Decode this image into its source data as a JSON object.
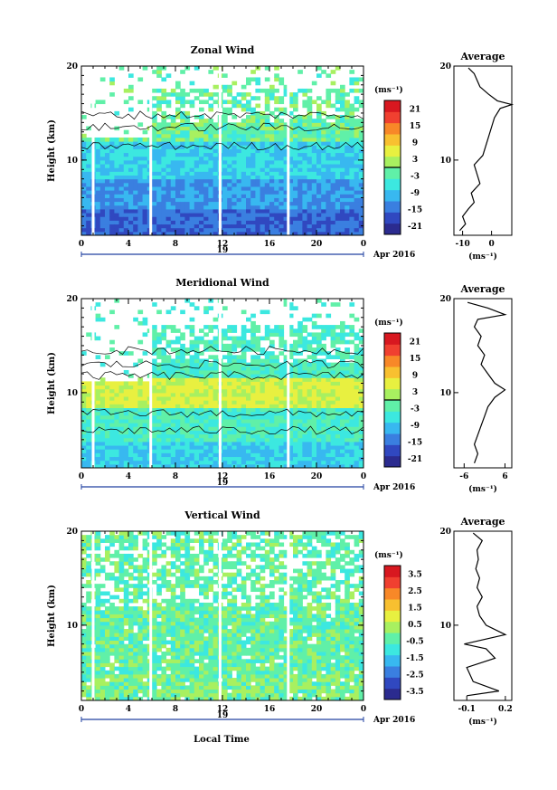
{
  "figure": {
    "xlabel": "Local Time",
    "date_label": "Apr 2016",
    "day_label": "19"
  },
  "chart_data": [
    {
      "id": "zonal",
      "type": "heatmap",
      "title": "Zonal Wind",
      "ylabel": "Height (km)",
      "xlim": [
        0,
        24
      ],
      "ylim": [
        2,
        20
      ],
      "xticks": [
        "0",
        "4",
        "8",
        "12",
        "16",
        "20",
        "0"
      ],
      "yticks": [
        "10",
        "20"
      ],
      "colorbar": {
        "unit_label": "(ms⁻¹)",
        "ticks": [
          "21",
          "15",
          "9",
          "3",
          "-3",
          "-9",
          "-15",
          "-21"
        ],
        "range": [
          -24,
          24
        ],
        "contour_level": 0
      },
      "profile": {
        "title": "Average",
        "xlabel": "(ms⁻¹)",
        "xticks": [
          "-10",
          "0"
        ],
        "xlim": [
          -13,
          7
        ],
        "ylim": [
          2,
          20
        ],
        "yticks": [
          "10",
          "20"
        ],
        "values": [
          [
            -11,
            2.5
          ],
          [
            -9,
            3.2
          ],
          [
            -10,
            4
          ],
          [
            -8,
            4.8
          ],
          [
            -6,
            5.5
          ],
          [
            -7,
            6.5
          ],
          [
            -4,
            7.5
          ],
          [
            -5,
            8.5
          ],
          [
            -6,
            9.5
          ],
          [
            -3,
            10.5
          ],
          [
            -2,
            11.5
          ],
          [
            -1,
            12.5
          ],
          [
            0,
            13.5
          ],
          [
            1,
            14.5
          ],
          [
            3,
            15.5
          ],
          [
            7,
            15.9
          ],
          [
            2,
            16.3
          ],
          [
            -1,
            17
          ],
          [
            -4,
            17.8
          ],
          [
            -5,
            18.5
          ],
          [
            -6,
            19.2
          ],
          [
            -8,
            19.8
          ]
        ]
      }
    },
    {
      "id": "meridional",
      "type": "heatmap",
      "title": "Meridional Wind",
      "ylabel": "Height (km)",
      "xlim": [
        0,
        24
      ],
      "ylim": [
        2,
        20
      ],
      "xticks": [
        "0",
        "4",
        "8",
        "12",
        "16",
        "20",
        "0"
      ],
      "yticks": [
        "10",
        "20"
      ],
      "colorbar": {
        "unit_label": "(ms⁻¹)",
        "ticks": [
          "21",
          "15",
          "9",
          "3",
          "-3",
          "-9",
          "-15",
          "-21"
        ],
        "range": [
          -24,
          24
        ],
        "contour_level": 0
      },
      "profile": {
        "title": "Average",
        "xlabel": "(ms⁻¹)",
        "xticks": [
          "-6",
          "6"
        ],
        "xlim": [
          -9,
          8
        ],
        "ylim": [
          2,
          20
        ],
        "yticks": [
          "10",
          "20"
        ],
        "values": [
          [
            -3,
            2.5
          ],
          [
            -2,
            3.5
          ],
          [
            -3,
            4.5
          ],
          [
            -2,
            5.5
          ],
          [
            -1,
            6.5
          ],
          [
            0,
            7.5
          ],
          [
            1,
            8.5
          ],
          [
            3,
            9.5
          ],
          [
            6,
            10.3
          ],
          [
            3,
            11
          ],
          [
            1,
            12
          ],
          [
            -1,
            13
          ],
          [
            0,
            14
          ],
          [
            -2,
            15
          ],
          [
            -1,
            16
          ],
          [
            -3,
            17
          ],
          [
            -2,
            17.8
          ],
          [
            6,
            18.3
          ],
          [
            1,
            19
          ],
          [
            -5,
            19.6
          ]
        ]
      }
    },
    {
      "id": "vertical",
      "type": "heatmap",
      "title": "Vertical Wind",
      "ylabel": "Height (km)",
      "xlim": [
        0,
        24
      ],
      "ylim": [
        2,
        20
      ],
      "xticks": [
        "0",
        "4",
        "8",
        "12",
        "16",
        "20",
        "0"
      ],
      "yticks": [
        "10",
        "20"
      ],
      "colorbar": {
        "unit_label": "(ms⁻¹)",
        "ticks": [
          "3.5",
          "2.5",
          "1.5",
          "0.5",
          "-0.5",
          "-1.5",
          "-2.5",
          "-3.5"
        ],
        "range": [
          -4,
          4
        ]
      },
      "profile": {
        "title": "Average",
        "xlabel": "(ms⁻¹)",
        "xticks": [
          "-0.1",
          "0.2"
        ],
        "xlim": [
          -0.2,
          0.25
        ],
        "ylim": [
          2,
          20
        ],
        "yticks": [
          "10",
          "20"
        ],
        "values": [
          [
            -0.1,
            2.5
          ],
          [
            0.15,
            3
          ],
          [
            -0.05,
            4
          ],
          [
            -0.1,
            5.5
          ],
          [
            0.12,
            6.5
          ],
          [
            0.05,
            7.5
          ],
          [
            -0.12,
            8
          ],
          [
            0.2,
            9
          ],
          [
            0.05,
            10
          ],
          [
            0,
            11
          ],
          [
            -0.02,
            12
          ],
          [
            0.02,
            13
          ],
          [
            -0.02,
            14
          ],
          [
            0,
            15
          ],
          [
            -0.03,
            16
          ],
          [
            -0.01,
            17
          ],
          [
            -0.02,
            18
          ],
          [
            0.02,
            19
          ],
          [
            -0.05,
            19.8
          ]
        ]
      }
    }
  ],
  "colors": {
    "scale": [
      "#2b2b8f",
      "#3048c0",
      "#3a7fe0",
      "#38b8f0",
      "#3ce8e0",
      "#60f0a8",
      "#a8f060",
      "#e8f040",
      "#f8c030",
      "#f88828",
      "#f04030",
      "#d81820"
    ]
  }
}
